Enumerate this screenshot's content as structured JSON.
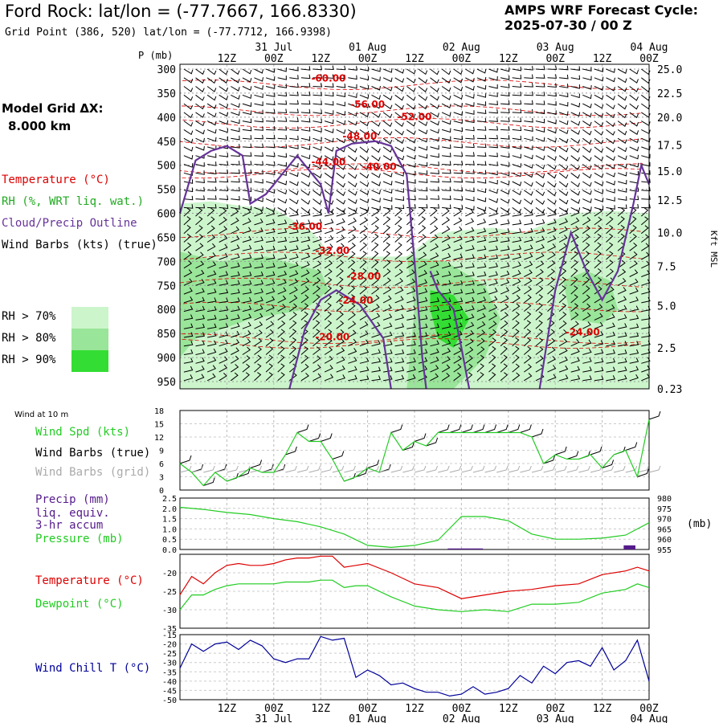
{
  "header": {
    "title": "Ford Rock:  lat/lon = (-77.7667, 166.8330)",
    "subtitle": "Grid Point (386, 520) lat/lon = (-77.7712, 166.9398)",
    "cycle_label": "AMPS WRF Forecast Cycle:",
    "cycle_value": "2025-07-30 / 00  Z",
    "model_grid_label": "Model Grid ΔX:",
    "model_grid_value": "8.000 km"
  },
  "legend": {
    "temperature": "Temperature (°C)",
    "rh": "RH (%, WRT liq. wat.)",
    "cloud": "Cloud/Precip Outline",
    "wind": "Wind Barbs (kts) (true)",
    "rh70": "RH > 70%",
    "rh80": "RH > 80%",
    "rh90": "RH > 90%"
  },
  "colors": {
    "temperature": "#dd0000",
    "rh_legend": "#22aa22",
    "cloud": "#663399",
    "rh70": "#ccf5cc",
    "rh80": "#99e599",
    "rh90": "#33dd33",
    "wind_speed": "#22cc22",
    "wind_chill": "#000099",
    "grid_barbs": "#aaaaaa",
    "precip": "#551a8b"
  },
  "time_axis": {
    "hours": [
      0,
      120
    ],
    "tick_labels": [
      "12Z",
      "00Z",
      "12Z",
      "00Z",
      "12Z",
      "00Z",
      "12Z",
      "00Z",
      "12Z",
      "00Z"
    ],
    "tick_hours": [
      12,
      24,
      36,
      48,
      60,
      72,
      84,
      96,
      108,
      120
    ],
    "date_labels": [
      "31 Jul",
      "01 Aug",
      "02 Aug",
      "03 Aug",
      "04 Aug"
    ],
    "date_hours": [
      24,
      48,
      72,
      96,
      120
    ]
  },
  "chart_data": [
    {
      "type": "heatmap",
      "name": "Vertical cross-section",
      "yaxis_title": "P (mb)",
      "y_ticks": [
        300,
        350,
        400,
        450,
        500,
        550,
        600,
        650,
        700,
        750,
        800,
        850,
        900,
        950
      ],
      "ylim": [
        965,
        290
      ],
      "right_axis_label": "Kft MSL",
      "right_ticks": [
        {
          "p": 300,
          "label": "25.0"
        },
        {
          "p": 350,
          "label": "22.5"
        },
        {
          "p": 400,
          "label": "20.0"
        },
        {
          "p": 458,
          "label": "17.5"
        },
        {
          "p": 512,
          "label": "15.0"
        },
        {
          "p": 572,
          "label": "12.5"
        },
        {
          "p": 640,
          "label": "10.0"
        },
        {
          "p": 710,
          "label": "7.5"
        },
        {
          "p": 792,
          "label": "5.0"
        },
        {
          "p": 880,
          "label": "2.5"
        },
        {
          "p": 965,
          "label": "0.23"
        }
      ],
      "isotherm_labels": [
        {
          "t": 38,
          "p": 326,
          "label": "-60.00"
        },
        {
          "t": 48,
          "p": 380,
          "label": "-56.00"
        },
        {
          "t": 60,
          "p": 406,
          "label": "-52.00"
        },
        {
          "t": 46,
          "p": 446,
          "label": "-48.00"
        },
        {
          "t": 38,
          "p": 500,
          "label": "-44.00"
        },
        {
          "t": 51,
          "p": 510,
          "label": "-40.00"
        },
        {
          "t": 32,
          "p": 634,
          "label": "-36.00"
        },
        {
          "t": 39,
          "p": 684,
          "label": "-32.00"
        },
        {
          "t": 47,
          "p": 738,
          "label": "-28.00"
        },
        {
          "t": 45,
          "p": 788,
          "label": "-24.00"
        },
        {
          "t": 103,
          "p": 854,
          "label": "-24.00"
        },
        {
          "t": 39,
          "p": 864,
          "label": "-20.00"
        }
      ],
      "rh_regions": [
        {
          "level": 70,
          "polygon": [
            [
              0,
              580
            ],
            [
              8,
              575
            ],
            [
              16,
              585
            ],
            [
              24,
              590
            ],
            [
              34,
              640
            ],
            [
              38,
              680
            ],
            [
              45,
              690
            ],
            [
              58,
              690
            ],
            [
              66,
              640
            ],
            [
              80,
              630
            ],
            [
              88,
              640
            ],
            [
              100,
              600
            ],
            [
              110,
              595
            ],
            [
              120,
              600
            ],
            [
              120,
              965
            ],
            [
              0,
              965
            ]
          ]
        },
        {
          "level": 80,
          "polygon": [
            [
              0,
              680
            ],
            [
              10,
              700
            ],
            [
              22,
              690
            ],
            [
              36,
              720
            ],
            [
              38,
              760
            ],
            [
              32,
              800
            ],
            [
              18,
              820
            ],
            [
              4,
              860
            ],
            [
              0,
              900
            ]
          ]
        },
        {
          "level": 80,
          "polygon": [
            [
              58,
              690
            ],
            [
              68,
              700
            ],
            [
              78,
              750
            ],
            [
              82,
              820
            ],
            [
              78,
              900
            ],
            [
              70,
              965
            ],
            [
              58,
              965
            ],
            [
              60,
              800
            ]
          ]
        },
        {
          "level": 80,
          "polygon": [
            [
              98,
              740
            ],
            [
              104,
              720
            ],
            [
              110,
              740
            ],
            [
              112,
              800
            ],
            [
              108,
              830
            ],
            [
              100,
              820
            ]
          ]
        },
        {
          "level": 90,
          "polygon": [
            [
              64,
              760
            ],
            [
              70,
              770
            ],
            [
              74,
              820
            ],
            [
              70,
              880
            ],
            [
              66,
              860
            ],
            [
              64,
              800
            ]
          ]
        }
      ],
      "cloud_outline": [
        [
          [
            0,
            600
          ],
          [
            4,
            490
          ],
          [
            8,
            470
          ],
          [
            12,
            460
          ],
          [
            16,
            480
          ],
          [
            18,
            580
          ],
          [
            22,
            560
          ],
          [
            26,
            520
          ],
          [
            30,
            480
          ],
          [
            36,
            540
          ],
          [
            38,
            600
          ],
          [
            40,
            470
          ],
          [
            44,
            455
          ],
          [
            50,
            450
          ],
          [
            54,
            460
          ],
          [
            58,
            520
          ],
          [
            60,
            700
          ],
          [
            62,
            900
          ],
          [
            63,
            965
          ]
        ],
        [
          [
            28,
            965
          ],
          [
            32,
            840
          ],
          [
            36,
            780
          ],
          [
            40,
            760
          ],
          [
            46,
            790
          ],
          [
            52,
            860
          ],
          [
            54,
            965
          ]
        ],
        [
          [
            64,
            720
          ],
          [
            66,
            760
          ],
          [
            70,
            800
          ],
          [
            72,
            880
          ],
          [
            74,
            965
          ]
        ],
        [
          [
            92,
            965
          ],
          [
            96,
            760
          ],
          [
            100,
            640
          ],
          [
            104,
            720
          ],
          [
            108,
            780
          ],
          [
            112,
            720
          ],
          [
            116,
            580
          ],
          [
            118,
            500
          ],
          [
            120,
            540
          ]
        ]
      ]
    },
    {
      "type": "line",
      "name": "Wind at 10 m",
      "panel_title": "Wind at 10 m",
      "labels": [
        "Wind Spd (kts)",
        "Wind Barbs (true)",
        "Wind Barbs (grid)"
      ],
      "ylim": [
        0,
        18
      ],
      "y_ticks": [
        0,
        3,
        6,
        9,
        12,
        15,
        18
      ],
      "series": [
        {
          "name": "Wind Spd (kts)",
          "x": [
            0,
            3,
            6,
            9,
            12,
            15,
            18,
            21,
            24,
            27,
            30,
            33,
            36,
            39,
            42,
            45,
            48,
            51,
            54,
            57,
            60,
            63,
            66,
            69,
            72,
            75,
            78,
            81,
            84,
            87,
            90,
            93,
            96,
            99,
            102,
            105,
            108,
            111,
            114,
            117,
            120
          ],
          "values": [
            6,
            4,
            1,
            4,
            2,
            3,
            5,
            4,
            4,
            8,
            13,
            11,
            11,
            7,
            2,
            3,
            5,
            4,
            13,
            9,
            11,
            10,
            13,
            13,
            13,
            13,
            13,
            13,
            13,
            13,
            12,
            6,
            8,
            7,
            7,
            8,
            5,
            8,
            9,
            3,
            16
          ]
        }
      ]
    },
    {
      "type": "line",
      "name": "Precip and pressure",
      "labels": [
        "Precip (mm)",
        "liq. equiv.",
        "3-hr accum",
        "Pressure (mb)"
      ],
      "ylim_left": [
        0,
        2.5
      ],
      "left_ticks": [
        "0.0",
        "0.5",
        "1.0",
        "1.5",
        "2.0",
        "2.5"
      ],
      "ylim_right": [
        955,
        980
      ],
      "right_ticks": [
        955,
        960,
        965,
        970,
        975,
        980
      ],
      "right_unit": "(mb)",
      "series": [
        {
          "name": "Pressure (mb)",
          "x": [
            0,
            6,
            12,
            18,
            24,
            30,
            36,
            42,
            48,
            54,
            60,
            66,
            72,
            78,
            84,
            90,
            96,
            102,
            108,
            114,
            120
          ],
          "values": [
            975.5,
            974.5,
            973,
            972,
            970,
            968.5,
            966,
            962.5,
            957,
            956,
            957,
            959.5,
            971,
            971,
            969,
            962.5,
            960,
            960,
            960.5,
            962,
            968
          ]
        },
        {
          "name": "Precip (mm)",
          "bars": [
            {
              "t": 70,
              "value": 0.05
            },
            {
              "t": 73,
              "value": 0.05
            },
            {
              "t": 76,
              "value": 0.05
            },
            {
              "t": 115,
              "value": 0.2
            }
          ]
        }
      ]
    },
    {
      "type": "line",
      "name": "Temperature and dewpoint",
      "labels": [
        "Temperature (°C)",
        "Dewpoint (°C)"
      ],
      "ylim": [
        -35,
        -15
      ],
      "y_ticks": [
        -35,
        -30,
        -25,
        -20
      ],
      "series": [
        {
          "name": "Temperature (°C)",
          "x": [
            0,
            3,
            6,
            9,
            12,
            15,
            18,
            21,
            24,
            27,
            30,
            33,
            36,
            39,
            42,
            45,
            48,
            54,
            60,
            66,
            72,
            78,
            84,
            90,
            96,
            102,
            108,
            114,
            117,
            120
          ],
          "values": [
            -26,
            -21,
            -23,
            -20,
            -18,
            -17.5,
            -18,
            -18,
            -17.5,
            -16.5,
            -16,
            -16,
            -15.5,
            -15.5,
            -18.5,
            -18,
            -17.5,
            -20,
            -23,
            -24,
            -27,
            -26,
            -25,
            -24.5,
            -23.5,
            -23,
            -20.5,
            -19.5,
            -18.5,
            -19.5
          ]
        },
        {
          "name": "Dewpoint (°C)",
          "x": [
            0,
            3,
            6,
            9,
            12,
            15,
            18,
            21,
            24,
            27,
            30,
            33,
            36,
            39,
            42,
            45,
            48,
            54,
            60,
            66,
            72,
            78,
            84,
            90,
            96,
            102,
            108,
            114,
            117,
            120
          ],
          "values": [
            -30,
            -26,
            -26,
            -24.5,
            -23.5,
            -23,
            -23,
            -23,
            -23,
            -22.5,
            -22.5,
            -22.5,
            -22,
            -22,
            -24,
            -23.5,
            -23.5,
            -26.5,
            -29,
            -30,
            -30.5,
            -30,
            -30.5,
            -28.5,
            -28.5,
            -28,
            -25.5,
            -24.5,
            -23,
            -24
          ]
        }
      ]
    },
    {
      "type": "line",
      "name": "Wind chill",
      "labels": [
        "Wind Chill T (°C)"
      ],
      "ylim": [
        -50,
        -15
      ],
      "y_ticks": [
        -50,
        -45,
        -40,
        -35,
        -30,
        -25,
        -20,
        -15
      ],
      "series": [
        {
          "name": "Wind Chill T (°C)",
          "x": [
            0,
            3,
            6,
            9,
            12,
            15,
            18,
            21,
            24,
            27,
            30,
            33,
            36,
            39,
            42,
            45,
            48,
            51,
            54,
            57,
            60,
            63,
            66,
            69,
            72,
            75,
            78,
            81,
            84,
            87,
            90,
            93,
            96,
            99,
            102,
            105,
            108,
            111,
            114,
            117,
            120
          ],
          "values": [
            -33,
            -20,
            -24,
            -20,
            -19,
            -23,
            -18,
            -21,
            -28,
            -30,
            -28,
            -28,
            -16,
            -18,
            -17,
            -38,
            -34,
            -37,
            -42,
            -41,
            -44,
            -46,
            -46,
            -48,
            -47,
            -43,
            -47,
            -46,
            -44,
            -37,
            -41,
            -32,
            -36,
            -30,
            -29,
            -32,
            -22,
            -34,
            -29,
            -18,
            -40
          ]
        }
      ]
    }
  ]
}
